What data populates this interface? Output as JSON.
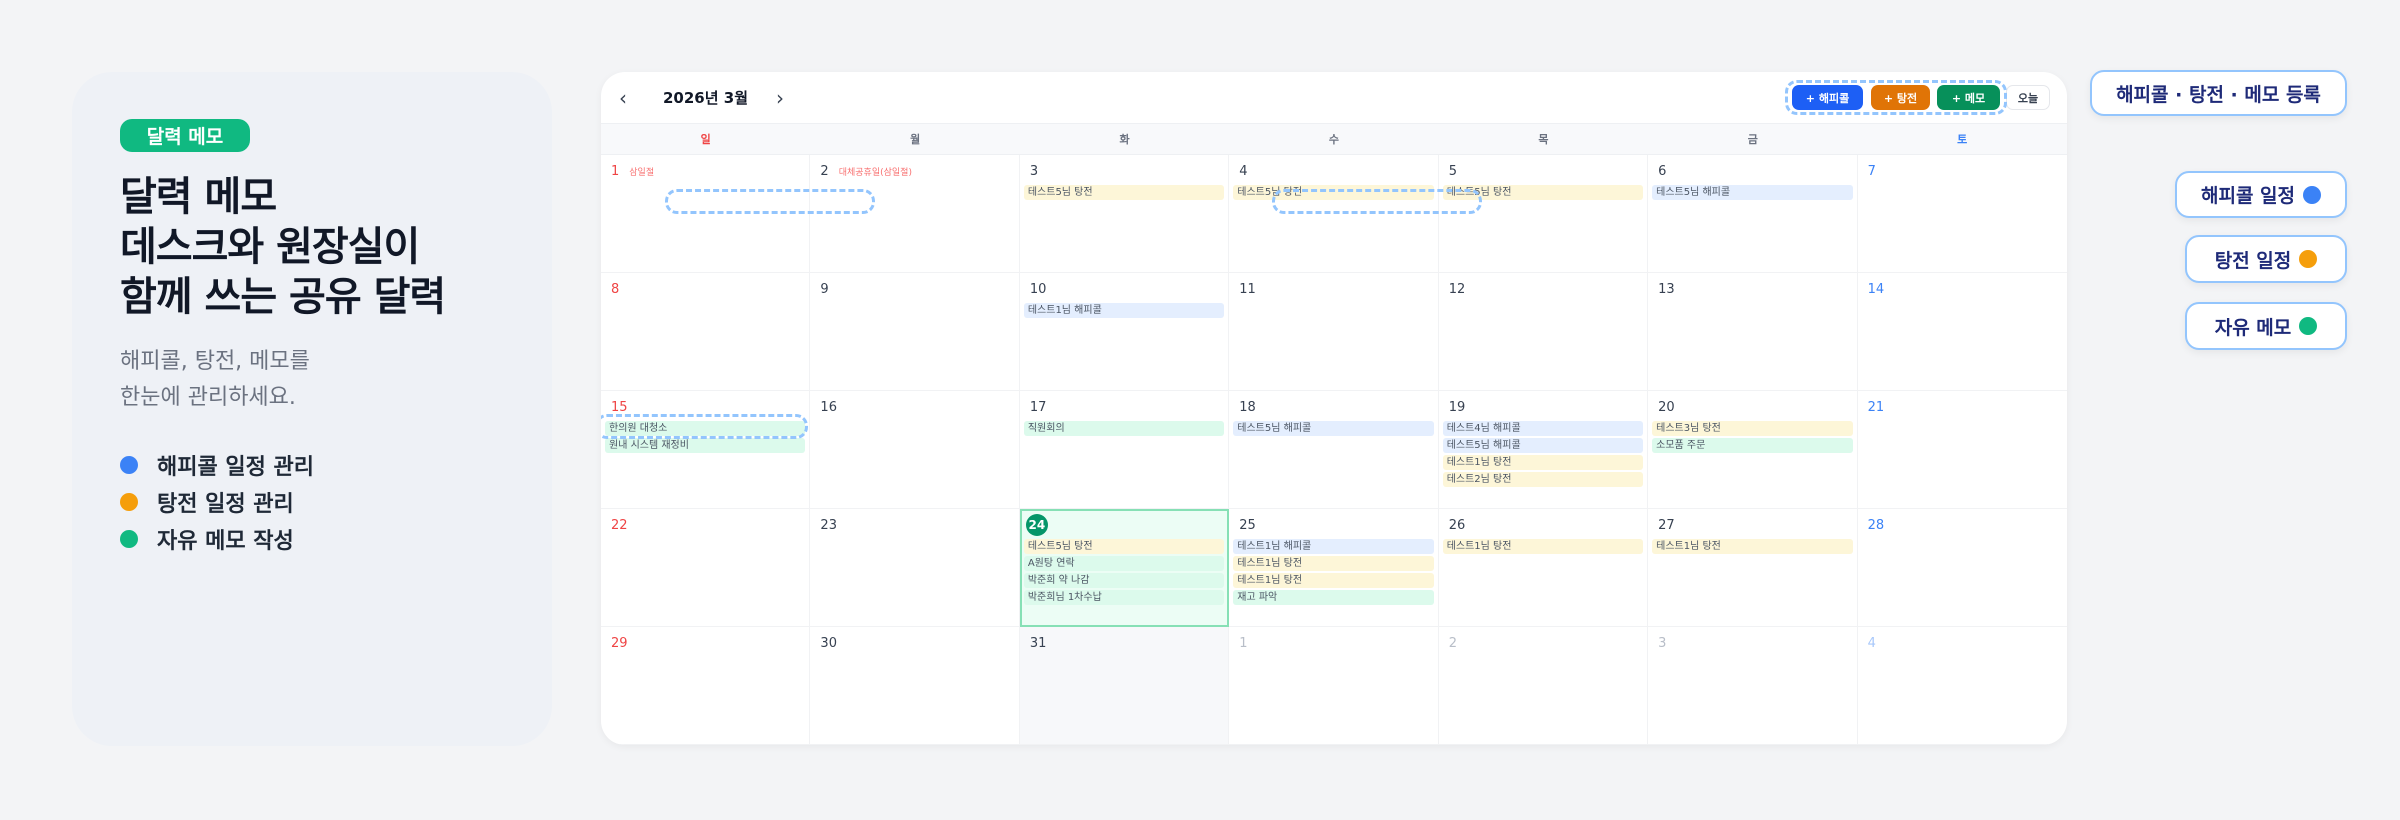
{
  "left": {
    "badge": "달력 메모",
    "title": [
      "달력 메모",
      "데스크와 원장실이",
      "함께 쓰는 공유 달력"
    ],
    "subtitle": [
      "해피콜, 탕전, 메모를",
      "한눈에 관리하세요."
    ],
    "bullets": [
      {
        "label": "해피콜 일정 관리",
        "color": "#3b82f6"
      },
      {
        "label": "탕전 일정 관리",
        "color": "#f59e0b"
      },
      {
        "label": "자유 메모 작성",
        "color": "#10b981"
      }
    ]
  },
  "calendar": {
    "month": "2026년 3월",
    "prev_icon": "chevron-left-icon",
    "next_icon": "chevron-right-icon",
    "buttons": {
      "happycall": "+ 해피콜",
      "tangjeon": "+ 탕전",
      "memo": "+ 메모",
      "today": "오늘"
    },
    "colors": {
      "happycall": "#1d5ff5",
      "tangjeon": "#e07406",
      "memo": "#07905a",
      "sunday": "#ef4444",
      "saturday": "#3b82f6",
      "today": "#059669"
    },
    "weekdays": [
      "일",
      "월",
      "화",
      "수",
      "목",
      "금",
      "토"
    ],
    "days": [
      {
        "day": "1",
        "holiday": "삼일절",
        "events": []
      },
      {
        "day": "2",
        "holiday": "대체공휴일(삼일절)",
        "events": []
      },
      {
        "day": "3",
        "events": [
          {
            "type": "tangjeon",
            "text": "테스트5님 탕전"
          }
        ]
      },
      {
        "day": "4",
        "events": [
          {
            "type": "tangjeon",
            "text": "테스트5님 탕전"
          }
        ]
      },
      {
        "day": "5",
        "events": [
          {
            "type": "tangjeon",
            "text": "테스트5님 탕전"
          }
        ]
      },
      {
        "day": "6",
        "events": [
          {
            "type": "happycall",
            "text": "테스트5님 해피콜"
          }
        ]
      },
      {
        "day": "7",
        "events": []
      },
      {
        "day": "8",
        "events": []
      },
      {
        "day": "9",
        "events": []
      },
      {
        "day": "10",
        "events": [
          {
            "type": "happycall",
            "text": "테스트1님 해피콜"
          }
        ]
      },
      {
        "day": "11",
        "events": []
      },
      {
        "day": "12",
        "events": []
      },
      {
        "day": "13",
        "events": []
      },
      {
        "day": "14",
        "events": []
      },
      {
        "day": "15",
        "events": [
          {
            "type": "memo",
            "text": "한의원 대청소"
          },
          {
            "type": "memo",
            "text": "원내 시스템 재정비"
          }
        ]
      },
      {
        "day": "16",
        "events": []
      },
      {
        "day": "17",
        "events": [
          {
            "type": "memo",
            "text": "직원회의"
          }
        ]
      },
      {
        "day": "18",
        "events": [
          {
            "type": "happycall",
            "text": "테스트5님 해피콜"
          }
        ]
      },
      {
        "day": "19",
        "events": [
          {
            "type": "happycall",
            "text": "테스트4님 해피콜"
          },
          {
            "type": "happycall",
            "text": "테스트5님 해피콜"
          },
          {
            "type": "tangjeon",
            "text": "테스트1님 탕전"
          },
          {
            "type": "tangjeon",
            "text": "테스트2님 탕전"
          }
        ]
      },
      {
        "day": "20",
        "events": [
          {
            "type": "tangjeon",
            "text": "테스트3님 탕전"
          },
          {
            "type": "memo",
            "text": "소모품 주문"
          }
        ]
      },
      {
        "day": "21",
        "events": []
      },
      {
        "day": "22",
        "events": []
      },
      {
        "day": "23",
        "events": []
      },
      {
        "day": "24",
        "today": true,
        "events": [
          {
            "type": "tangjeon",
            "text": "테스트5님 탕전"
          },
          {
            "type": "memo",
            "text": "A원탕 연락"
          },
          {
            "type": "memo",
            "text": "박준희 약 나감"
          },
          {
            "type": "memo",
            "text": "박준희님 1차수납"
          }
        ]
      },
      {
        "day": "25",
        "events": [
          {
            "type": "happycall",
            "text": "테스트1님 해피콜"
          },
          {
            "type": "tangjeon",
            "text": "테스트1님 탕전"
          },
          {
            "type": "tangjeon",
            "text": "테스트1님 탕전"
          },
          {
            "type": "memo",
            "text": "재고 파악"
          }
        ]
      },
      {
        "day": "26",
        "events": [
          {
            "type": "tangjeon",
            "text": "테스트1님 탕전"
          }
        ]
      },
      {
        "day": "27",
        "events": [
          {
            "type": "tangjeon",
            "text": "테스트1님 탕전"
          }
        ]
      },
      {
        "day": "28",
        "events": []
      },
      {
        "day": "29",
        "events": []
      },
      {
        "day": "30",
        "events": []
      },
      {
        "day": "31",
        "shaded": true,
        "events": []
      },
      {
        "day": "1",
        "other": true,
        "events": []
      },
      {
        "day": "2",
        "other": true,
        "events": []
      },
      {
        "day": "3",
        "other": true,
        "events": []
      },
      {
        "day": "4",
        "other": true,
        "events": []
      }
    ]
  },
  "callouts": {
    "register": "해피콜 · 탕전 · 메모 등록",
    "happycall": "해피콜 일정",
    "tangjeon": "탕전 일정",
    "memo": "자유 메모"
  }
}
